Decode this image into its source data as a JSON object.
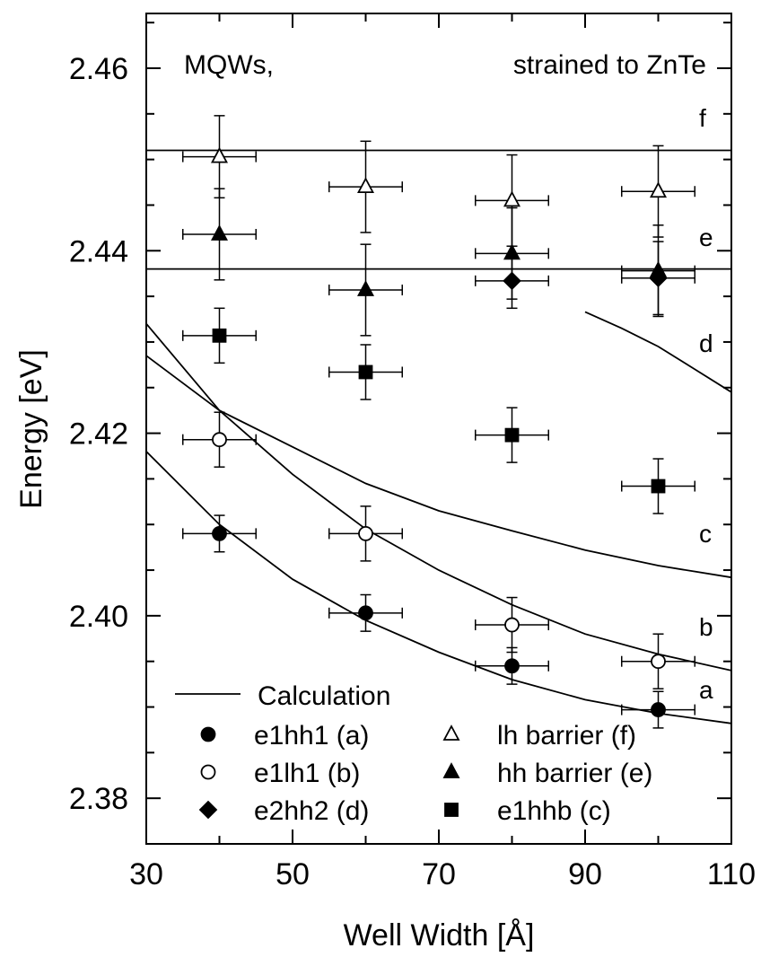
{
  "chart_data": {
    "type": "scatter",
    "xlabel": "Well Width [Å]",
    "ylabel": "Energy [eV]",
    "xlim": [
      30,
      110
    ],
    "ylim": [
      2.375,
      2.466
    ],
    "xticks": [
      30,
      50,
      70,
      90,
      110
    ],
    "yticks": [
      2.38,
      2.4,
      2.42,
      2.44,
      2.46
    ],
    "ytick_labels": [
      "2.38",
      "2.40",
      "2.42",
      "2.44",
      "2.46"
    ],
    "annotations": {
      "left": "MQWs,",
      "right": "strained to ZnTe"
    },
    "grid": false,
    "legend_position": "bottom-left",
    "curves": [
      {
        "label": "a",
        "x": [
          30,
          40,
          50,
          60,
          70,
          80,
          90,
          100,
          110
        ],
        "y": [
          2.418,
          2.41,
          2.404,
          2.3995,
          2.396,
          2.393,
          2.3908,
          2.3893,
          2.3882
        ]
      },
      {
        "label": "b",
        "x": [
          30,
          40,
          50,
          60,
          70,
          80,
          90,
          100,
          110
        ],
        "y": [
          2.4285,
          2.4225,
          2.4155,
          2.4095,
          2.405,
          2.4012,
          2.398,
          2.3958,
          2.394
        ]
      },
      {
        "label": "c",
        "x": [
          30,
          40,
          50,
          60,
          70,
          80,
          90,
          100,
          110
        ],
        "y": [
          2.432,
          2.4225,
          2.4185,
          2.4145,
          2.4115,
          2.4093,
          2.4072,
          2.4055,
          2.4042
        ]
      },
      {
        "label": "d",
        "x": [
          90,
          95,
          100,
          105,
          110
        ],
        "y": [
          2.4333,
          2.4315,
          2.4295,
          2.427,
          2.4245
        ]
      },
      {
        "label": "e",
        "x": [
          30,
          110
        ],
        "y": [
          2.438,
          2.438
        ]
      },
      {
        "label": "f",
        "x": [
          30,
          110
        ],
        "y": [
          2.451,
          2.451
        ]
      }
    ],
    "series": [
      {
        "name": "e1hh1 (a)",
        "marker": "circle-filled",
        "points": [
          {
            "x": 40,
            "y": 2.409,
            "xerr": 5,
            "yerr": 0.002
          },
          {
            "x": 60,
            "y": 2.4003,
            "xerr": 5,
            "yerr": 0.002
          },
          {
            "x": 80,
            "y": 2.3945,
            "xerr": 5,
            "yerr": 0.002
          },
          {
            "x": 100,
            "y": 2.3897,
            "xerr": 5,
            "yerr": 0.002
          }
        ]
      },
      {
        "name": "e1lh1 (b)",
        "marker": "circle-open",
        "points": [
          {
            "x": 40,
            "y": 2.4193,
            "xerr": 5,
            "yerr": 0.003
          },
          {
            "x": 60,
            "y": 2.409,
            "xerr": 5,
            "yerr": 0.003
          },
          {
            "x": 80,
            "y": 2.399,
            "xerr": 5,
            "yerr": 0.003
          },
          {
            "x": 100,
            "y": 2.395,
            "xerr": 5,
            "yerr": 0.003
          }
        ]
      },
      {
        "name": "e2hh2 (d)",
        "marker": "diamond-filled",
        "points": [
          {
            "x": 80,
            "y": 2.4367,
            "xerr": 5,
            "yerr": 0.003
          },
          {
            "x": 100,
            "y": 2.437,
            "xerr": 5,
            "yerr": 0.004
          }
        ]
      },
      {
        "name": "lh barrier (f)",
        "marker": "triangle-open",
        "points": [
          {
            "x": 40,
            "y": 2.4503,
            "xerr": 5,
            "yerr": 0.0045
          },
          {
            "x": 60,
            "y": 2.447,
            "xerr": 5,
            "yerr": 0.005
          },
          {
            "x": 80,
            "y": 2.4455,
            "xerr": 5,
            "yerr": 0.005
          },
          {
            "x": 100,
            "y": 2.4465,
            "xerr": 5,
            "yerr": 0.005
          }
        ]
      },
      {
        "name": "hh barrier (e)",
        "marker": "triangle-filled",
        "points": [
          {
            "x": 40,
            "y": 2.4418,
            "xerr": 5,
            "yerr": 0.005
          },
          {
            "x": 60,
            "y": 2.4357,
            "xerr": 5,
            "yerr": 0.005
          },
          {
            "x": 80,
            "y": 2.4397,
            "xerr": 5,
            "yerr": 0.005
          },
          {
            "x": 100,
            "y": 2.4378,
            "xerr": 5,
            "yerr": 0.005
          }
        ]
      },
      {
        "name": "e1hhb (c)",
        "marker": "square-filled",
        "points": [
          {
            "x": 40,
            "y": 2.4307,
            "xerr": 5,
            "yerr": 0.003
          },
          {
            "x": 60,
            "y": 2.4267,
            "xerr": 5,
            "yerr": 0.003
          },
          {
            "x": 80,
            "y": 2.4198,
            "xerr": 5,
            "yerr": 0.003
          },
          {
            "x": 100,
            "y": 2.4142,
            "xerr": 5,
            "yerr": 0.003
          }
        ]
      }
    ],
    "legend": {
      "line_entry": "Calculation",
      "entries": [
        "e1hh1 (a)",
        "lh barrier (f)",
        "e1lh1 (b)",
        "hh barrier (e)",
        "e2hh2 (d)",
        "e1hhb (c)"
      ]
    }
  }
}
